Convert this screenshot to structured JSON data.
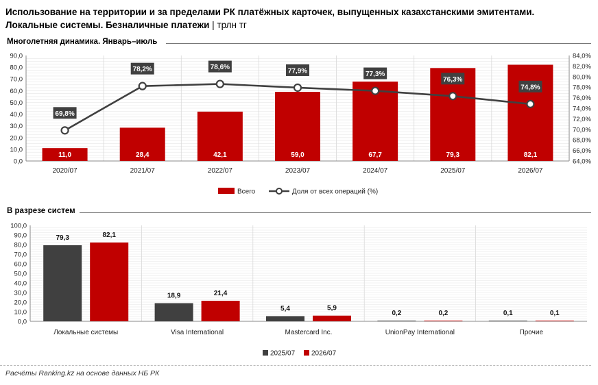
{
  "header": {
    "title_line1": "Использование на территории и за пределами РК платёжных карточек, выпущенных казахстанскими эмитентами.",
    "title_line2": "Локальные системы. Безналичные платежи",
    "unit": "трлн тг"
  },
  "source": "Расчёты Ranking.kz на основе данных НБ РК",
  "colors": {
    "red": "#c00000",
    "dark": "#404040",
    "line": "#404040"
  },
  "chart_data": [
    {
      "type": "bar",
      "title": "Многолетняя динамика. Январь–июль",
      "categories": [
        "2020/07",
        "2021/07",
        "2022/07",
        "2023/07",
        "2024/07",
        "2025/07",
        "2026/07"
      ],
      "series": [
        {
          "name": "Всего",
          "axis": "left",
          "kind": "bar",
          "values": [
            11.0,
            28.4,
            42.1,
            59.0,
            67.7,
            79.3,
            82.1
          ],
          "labels": [
            "11,0",
            "28,4",
            "42,1",
            "59,0",
            "67,7",
            "79,3",
            "82,1"
          ]
        },
        {
          "name": "Доля от всех операций (%)",
          "axis": "right",
          "kind": "line",
          "values": [
            69.8,
            78.2,
            78.6,
            77.9,
            77.3,
            76.3,
            74.8
          ],
          "labels": [
            "69,8%",
            "78,2%",
            "78,6%",
            "77,9%",
            "77,3%",
            "76,3%",
            "74,8%"
          ]
        }
      ],
      "y_left": {
        "min": 0,
        "max": 90,
        "ticks": [
          "0,0",
          "10,0",
          "20,0",
          "30,0",
          "40,0",
          "50,0",
          "60,0",
          "70,0",
          "80,0",
          "90,0"
        ]
      },
      "y_right": {
        "min": 64,
        "max": 84,
        "ticks": [
          "64,0%",
          "66,0%",
          "68,0%",
          "70,0%",
          "72,0%",
          "74,0%",
          "76,0%",
          "78,0%",
          "80,0%",
          "82,0%",
          "84,0%"
        ]
      },
      "legend": "bottom"
    },
    {
      "type": "bar",
      "title": "В разрезе систем",
      "categories": [
        "Локальные системы",
        "Visa International",
        "Mastercard Inc.",
        "UnionPay International",
        "Прочие"
      ],
      "series": [
        {
          "name": "2025/07",
          "values": [
            79.3,
            18.9,
            5.4,
            0.2,
            0.1
          ],
          "labels": [
            "79,3",
            "18,9",
            "5,4",
            "0,2",
            "0,1"
          ]
        },
        {
          "name": "2026/07",
          "values": [
            82.1,
            21.4,
            5.9,
            0.2,
            0.1
          ],
          "labels": [
            "82,1",
            "21,4",
            "5,9",
            "0,2",
            "0,1"
          ]
        }
      ],
      "y": {
        "min": 0,
        "max": 100,
        "ticks": [
          "0,0",
          "10,0",
          "20,0",
          "30,0",
          "40,0",
          "50,0",
          "60,0",
          "70,0",
          "80,0",
          "90,0",
          "100,0"
        ]
      },
      "legend": "bottom"
    }
  ]
}
